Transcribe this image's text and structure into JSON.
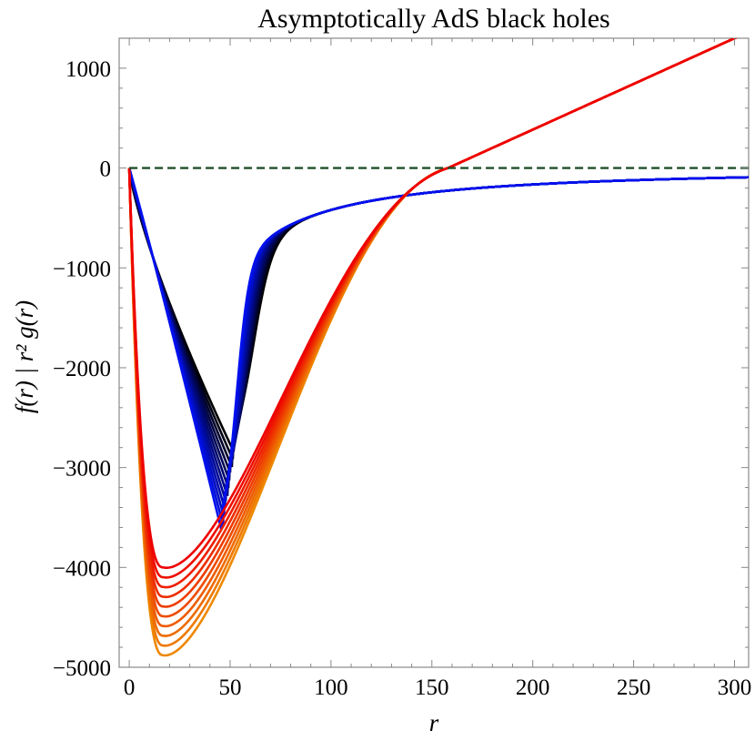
{
  "chart_data": {
    "type": "line",
    "title": "Asymptotically AdS black holes",
    "xlabel": "r",
    "ylabel": "f(r) | r² g(r)",
    "xlim": [
      -5,
      307
    ],
    "ylim": [
      -5000,
      1300
    ],
    "x_ticks": [
      0,
      50,
      100,
      150,
      200,
      250,
      300
    ],
    "y_ticks": [
      1000,
      0,
      -1000,
      -2000,
      -3000,
      -4000,
      -5000
    ],
    "x_tick_labels": [
      "0",
      "50",
      "100",
      "150",
      "200",
      "250",
      "300"
    ],
    "y_tick_labels": [
      "1000",
      "0",
      "−1000",
      "−2000",
      "−3000",
      "−4000",
      "−5000"
    ],
    "grid": false,
    "legend": "none",
    "reference_line": {
      "y": 0,
      "style": "dashed",
      "color": "#1f4f2a"
    },
    "families": [
      {
        "id": "f-family",
        "color_start": "#000000",
        "color_end": "#0010ee",
        "count": 12,
        "x_min": 45,
        "y_min_first": -2850,
        "y_min_last": -3650,
        "x_min_first": 52,
        "x_min_last": 46,
        "asymptote_note": "approaches 0 from below"
      },
      {
        "id": "g-family",
        "color_start": "#ee0000",
        "color_end": "#ee8800",
        "count": 10,
        "x_min": 17,
        "y_min_first": -4000,
        "y_min_last": -4880,
        "zero_crossing": 158,
        "y_at_300": 1300
      }
    ]
  }
}
